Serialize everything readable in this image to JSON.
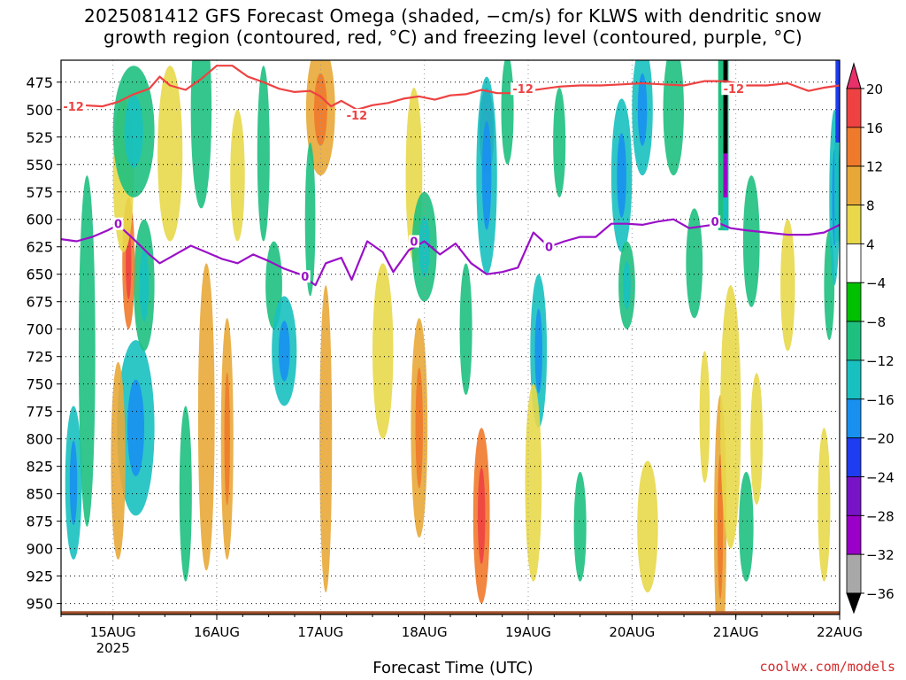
{
  "chart_data": {
    "type": "heatmap",
    "title": "2025081412 GFS Forecast Omega (shaded, −cm/s) for KLWS with dendritic snow",
    "subtitle": "growth region (contoured, red, °C) and freezing level (contoured, purple, °C)",
    "xlabel": "Forecast Time (UTC)",
    "ylabel": "",
    "x_ticks": [
      "15AUG",
      "16AUG",
      "17AUG",
      "18AUG",
      "19AUG",
      "20AUG",
      "21AUG",
      "22AUG"
    ],
    "x_year_label": "2025",
    "x_range_days": [
      14.5,
      22.0
    ],
    "y_ticks": [
      475,
      500,
      525,
      550,
      575,
      600,
      625,
      650,
      675,
      700,
      725,
      750,
      775,
      800,
      825,
      850,
      875,
      900,
      925,
      950
    ],
    "y_range_hPa": [
      455,
      960
    ],
    "grid": true,
    "colorbar": {
      "levels": [
        20,
        16,
        12,
        8,
        4,
        -4,
        -8,
        -12,
        -16,
        -20,
        -24,
        -28,
        -32,
        -36
      ],
      "labels": [
        "20",
        "16",
        "12",
        "8",
        "4",
        "−4",
        "−8",
        "−12",
        "−16",
        "−20",
        "−24",
        "−28",
        "−32",
        "−36"
      ],
      "colors": [
        "#e8306a",
        "#ee4242",
        "#f07a2c",
        "#e8a838",
        "#e8d84a",
        "#ffffff",
        "#00c000",
        "#1ec080",
        "#18c0c0",
        "#1890f0",
        "#1e3cf0",
        "#7814c8",
        "#9a00c8",
        "#a8a8a8",
        "#000000"
      ]
    },
    "shading_blobs": [
      {
        "x": 14.62,
        "p": 840,
        "dx": 0.08,
        "dp": 70,
        "v": -12
      },
      {
        "x": 14.75,
        "p": 720,
        "dx": 0.08,
        "dp": 160,
        "v": -8
      },
      {
        "x": 15.22,
        "p": 790,
        "dx": 0.18,
        "dp": 80,
        "v": -14
      },
      {
        "x": 15.3,
        "p": 660,
        "dx": 0.1,
        "dp": 60,
        "v": -10
      },
      {
        "x": 15.05,
        "p": 820,
        "dx": 0.07,
        "dp": 90,
        "v": 8
      },
      {
        "x": 15.15,
        "p": 640,
        "dx": 0.06,
        "dp": 60,
        "v": 12
      },
      {
        "x": 15.1,
        "p": 560,
        "dx": 0.1,
        "dp": 70,
        "v": 6
      },
      {
        "x": 15.2,
        "p": 520,
        "dx": 0.2,
        "dp": 60,
        "v": -10
      },
      {
        "x": 15.55,
        "p": 540,
        "dx": 0.12,
        "dp": 80,
        "v": 6
      },
      {
        "x": 15.85,
        "p": 500,
        "dx": 0.1,
        "dp": 90,
        "v": -8
      },
      {
        "x": 15.9,
        "p": 780,
        "dx": 0.08,
        "dp": 140,
        "v": 8
      },
      {
        "x": 15.7,
        "p": 850,
        "dx": 0.06,
        "dp": 80,
        "v": -8
      },
      {
        "x": 16.2,
        "p": 560,
        "dx": 0.07,
        "dp": 60,
        "v": 6
      },
      {
        "x": 16.1,
        "p": 800,
        "dx": 0.06,
        "dp": 110,
        "v": 10
      },
      {
        "x": 16.55,
        "p": 660,
        "dx": 0.08,
        "dp": 40,
        "v": -8
      },
      {
        "x": 16.45,
        "p": 540,
        "dx": 0.06,
        "dp": 80,
        "v": -8
      },
      {
        "x": 16.65,
        "p": 720,
        "dx": 0.12,
        "dp": 50,
        "v": -12
      },
      {
        "x": 17.0,
        "p": 500,
        "dx": 0.14,
        "dp": 60,
        "v": 10
      },
      {
        "x": 17.05,
        "p": 800,
        "dx": 0.06,
        "dp": 140,
        "v": 8
      },
      {
        "x": 16.9,
        "p": 600,
        "dx": 0.05,
        "dp": 70,
        "v": -8
      },
      {
        "x": 17.6,
        "p": 720,
        "dx": 0.1,
        "dp": 80,
        "v": 6
      },
      {
        "x": 17.9,
        "p": 560,
        "dx": 0.08,
        "dp": 80,
        "v": 6
      },
      {
        "x": 17.95,
        "p": 790,
        "dx": 0.08,
        "dp": 100,
        "v": 10
      },
      {
        "x": 18.0,
        "p": 625,
        "dx": 0.12,
        "dp": 50,
        "v": -10
      },
      {
        "x": 18.4,
        "p": 700,
        "dx": 0.06,
        "dp": 60,
        "v": -8
      },
      {
        "x": 18.55,
        "p": 870,
        "dx": 0.08,
        "dp": 80,
        "v": 12
      },
      {
        "x": 18.6,
        "p": 520,
        "dx": 0.07,
        "dp": 40,
        "v": -24
      },
      {
        "x": 18.6,
        "p": 560,
        "dx": 0.1,
        "dp": 90,
        "v": -12
      },
      {
        "x": 18.8,
        "p": 500,
        "dx": 0.06,
        "dp": 50,
        "v": -8
      },
      {
        "x": 19.1,
        "p": 720,
        "dx": 0.08,
        "dp": 70,
        "v": -12
      },
      {
        "x": 19.05,
        "p": 840,
        "dx": 0.08,
        "dp": 90,
        "v": 6
      },
      {
        "x": 19.5,
        "p": 880,
        "dx": 0.06,
        "dp": 50,
        "v": -8
      },
      {
        "x": 19.3,
        "p": 530,
        "dx": 0.06,
        "dp": 50,
        "v": -8
      },
      {
        "x": 19.9,
        "p": 560,
        "dx": 0.1,
        "dp": 70,
        "v": -14
      },
      {
        "x": 19.95,
        "p": 660,
        "dx": 0.08,
        "dp": 40,
        "v": -10
      },
      {
        "x": 20.1,
        "p": 500,
        "dx": 0.1,
        "dp": 60,
        "v": -12
      },
      {
        "x": 20.15,
        "p": 880,
        "dx": 0.1,
        "dp": 60,
        "v": 6
      },
      {
        "x": 20.4,
        "p": 500,
        "dx": 0.1,
        "dp": 60,
        "v": -8
      },
      {
        "x": 20.6,
        "p": 640,
        "dx": 0.08,
        "dp": 50,
        "v": -8
      },
      {
        "x": 20.85,
        "p": 880,
        "dx": 0.06,
        "dp": 120,
        "v": 10
      },
      {
        "x": 20.95,
        "p": 780,
        "dx": 0.1,
        "dp": 120,
        "v": 6
      },
      {
        "x": 20.7,
        "p": 780,
        "dx": 0.05,
        "dp": 60,
        "v": 6
      },
      {
        "x": 21.2,
        "p": 800,
        "dx": 0.06,
        "dp": 60,
        "v": 6
      },
      {
        "x": 21.1,
        "p": 880,
        "dx": 0.07,
        "dp": 50,
        "v": -8
      },
      {
        "x": 21.15,
        "p": 620,
        "dx": 0.08,
        "dp": 60,
        "v": -8
      },
      {
        "x": 21.5,
        "p": 660,
        "dx": 0.07,
        "dp": 60,
        "v": 6
      },
      {
        "x": 21.85,
        "p": 860,
        "dx": 0.06,
        "dp": 70,
        "v": 6
      },
      {
        "x": 21.9,
        "p": 660,
        "dx": 0.05,
        "dp": 50,
        "v": -8
      },
      {
        "x": 21.95,
        "p": 580,
        "dx": 0.05,
        "dp": 80,
        "v": -12
      }
    ],
    "shading_streaks": [
      {
        "x": 20.9,
        "p_top": 455,
        "p_bot": 540,
        "w": 0.04,
        "v": -40
      },
      {
        "x": 20.9,
        "p_top": 540,
        "p_bot": 580,
        "w": 0.04,
        "v": -30
      },
      {
        "x": 20.9,
        "p_top": 580,
        "p_bot": 610,
        "w": 0.05,
        "v": -14
      },
      {
        "x": 20.88,
        "p_top": 455,
        "p_bot": 610,
        "w": 0.1,
        "v": -10
      },
      {
        "x": 21.98,
        "p_top": 455,
        "p_bot": 530,
        "w": 0.04,
        "v": -20
      },
      {
        "x": 21.97,
        "p_top": 530,
        "p_bot": 620,
        "w": 0.04,
        "v": -14
      }
    ],
    "series": [
      {
        "name": "-12",
        "color": "#ee4242",
        "x": [
          14.5,
          14.7,
          14.9,
          15.05,
          15.2,
          15.35,
          15.45,
          15.55,
          15.7,
          15.85,
          16.0,
          16.15,
          16.3,
          16.45,
          16.6,
          16.75,
          16.9,
          17.0,
          17.1,
          17.2,
          17.35,
          17.5,
          17.65,
          17.8,
          17.95,
          18.1,
          18.25,
          18.4,
          18.55,
          18.7,
          18.85,
          19.0,
          19.15,
          19.3,
          19.5,
          19.7,
          19.9,
          20.1,
          20.3,
          20.5,
          20.7,
          20.9,
          21.1,
          21.3,
          21.5,
          21.7,
          21.85,
          22.0
        ],
        "y": [
          498,
          496,
          497,
          493,
          486,
          481,
          470,
          478,
          482,
          472,
          460,
          460,
          470,
          475,
          481,
          484,
          483,
          488,
          497,
          492,
          500,
          496,
          494,
          490,
          488,
          491,
          487,
          486,
          482,
          485,
          485,
          483,
          481,
          479,
          478,
          478,
          477,
          476,
          477,
          478,
          474,
          474,
          478,
          478,
          476,
          483,
          480,
          478
        ]
      },
      {
        "name": "0",
        "color": "#9a10c8",
        "x": [
          14.5,
          14.65,
          14.8,
          14.95,
          15.05,
          15.2,
          15.35,
          15.45,
          15.6,
          15.75,
          15.9,
          16.05,
          16.2,
          16.35,
          16.5,
          16.65,
          16.8,
          16.95,
          17.05,
          17.2,
          17.3,
          17.45,
          17.6,
          17.7,
          17.85,
          18.0,
          18.15,
          18.3,
          18.45,
          18.6,
          18.75,
          18.9,
          19.05,
          19.2,
          19.35,
          19.5,
          19.65,
          19.8,
          19.95,
          20.1,
          20.25,
          20.4,
          20.55,
          20.7,
          20.85,
          20.95,
          21.1,
          21.3,
          21.5,
          21.7,
          21.85,
          22.0
        ],
        "y": [
          618,
          620,
          616,
          610,
          605,
          618,
          632,
          640,
          632,
          624,
          630,
          636,
          640,
          632,
          638,
          645,
          650,
          660,
          640,
          635,
          655,
          620,
          630,
          648,
          628,
          620,
          632,
          622,
          640,
          650,
          648,
          644,
          612,
          625,
          620,
          616,
          616,
          604,
          604,
          605,
          602,
          600,
          608,
          606,
          604,
          608,
          610,
          612,
          614,
          614,
          612,
          605
        ]
      }
    ],
    "contour_labels": [
      {
        "text": "-12",
        "series": "-12",
        "x": 14.62,
        "y": 497
      },
      {
        "text": "-12",
        "series": "-12",
        "x": 17.35,
        "y": 505
      },
      {
        "text": "-12",
        "series": "-12",
        "x": 18.95,
        "y": 481
      },
      {
        "text": "-12",
        "series": "-12",
        "x": 20.98,
        "y": 481
      },
      {
        "text": "0",
        "series": "0",
        "x": 15.05,
        "y": 604
      },
      {
        "text": "0",
        "series": "0",
        "x": 16.85,
        "y": 652
      },
      {
        "text": "0",
        "series": "0",
        "x": 17.9,
        "y": 620
      },
      {
        "text": "0",
        "series": "0",
        "x": 19.2,
        "y": 625
      },
      {
        "text": "0",
        "series": "0",
        "x": 20.8,
        "y": 602
      }
    ],
    "terrain_p": 957,
    "terrain_color": "#a0522d"
  },
  "credit": "coolwx.com/models"
}
